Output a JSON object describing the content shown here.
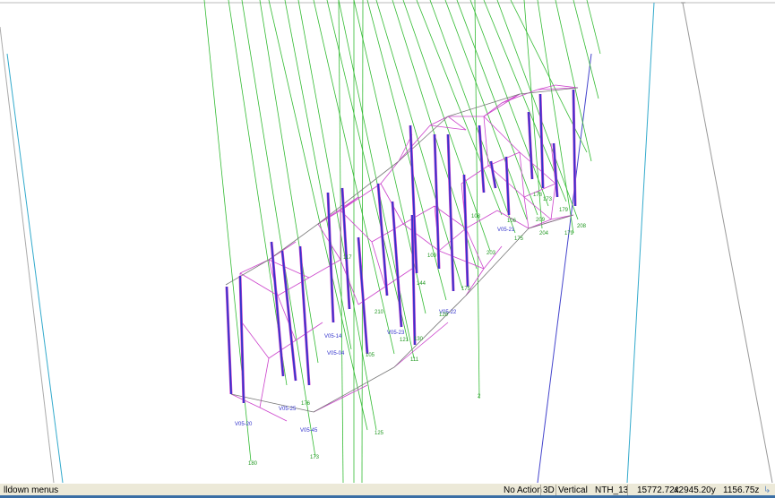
{
  "status_bar": {
    "hint": "lldown menus",
    "action": "No Action",
    "view_mode": "3D",
    "orientation": "Vertical",
    "section": "NTH_13",
    "coord_x": "15772.72x",
    "coord_y": "42945.20y",
    "coord_z": "1156.75z"
  },
  "colors": {
    "trace": "#33bb33",
    "mesh": "#cc44cc",
    "hole": "#3333cc",
    "frame": "#999999",
    "hole_label": "#3333cc",
    "id_label": "#229922"
  },
  "hole_labels": [
    "V05-20",
    "V05-25",
    "V05-45",
    "V05-14",
    "V05-04",
    "V05-23",
    "V05-22",
    "V05-21"
  ],
  "id_labels": [
    "180",
    "176",
    "173",
    "125",
    "117",
    "210",
    "121",
    "111",
    "105",
    "109",
    "175",
    "120",
    "108",
    "203",
    "106",
    "175",
    "209",
    "178",
    "173",
    "204",
    "179",
    "208",
    "2",
    "144",
    "130",
    "179"
  ]
}
